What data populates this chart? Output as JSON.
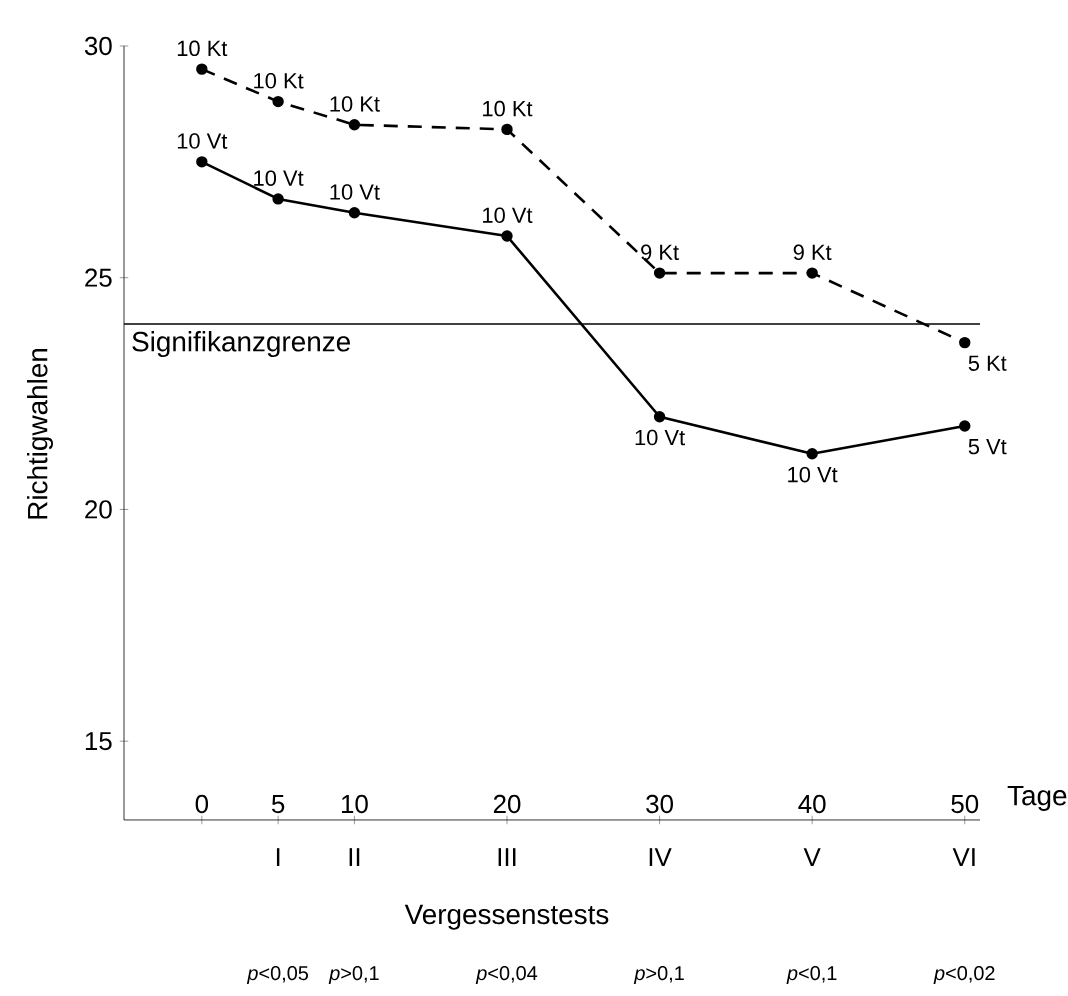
{
  "chart_data": {
    "type": "line",
    "xlabel": "Tage",
    "ylabel": "Richtigwahlen",
    "x": [
      0,
      5,
      10,
      20,
      30,
      40,
      50
    ],
    "series": [
      {
        "values": [
          29.5,
          28.8,
          28.3,
          28.2,
          25.1,
          25.1,
          23.6
        ],
        "color": "#000000",
        "line_style": "dashed"
      },
      {
        "values": [
          27.5,
          26.7,
          26.4,
          25.9,
          22.0,
          21.2,
          21.8
        ],
        "color": "#000000",
        "line_style": "solid"
      }
    ],
    "xlim": [
      -5.1,
      51
    ],
    "ylim": [
      13.3,
      30
    ],
    "yticks": [
      15,
      20,
      25,
      30
    ],
    "xticks": [
      0,
      5,
      10,
      20,
      30,
      40,
      50
    ],
    "ref_lines": [
      {
        "axis": "y",
        "value": 24,
        "label": "Signifikanzgrenze"
      }
    ],
    "marker": "circle",
    "annotations": [
      {
        "text": "10 Kt",
        "x": 0,
        "y": 29.5
      },
      {
        "text": "10 Kt",
        "x": 5,
        "y": 28.8
      },
      {
        "text": "10 Kt",
        "x": 10,
        "y": 28.3
      },
      {
        "text": "10 Kt",
        "x": 20,
        "y": 28.2
      },
      {
        "text": "9 Kt",
        "x": 30,
        "y": 25.1
      },
      {
        "text": "9 Kt",
        "x": 40,
        "y": 25.1
      },
      {
        "text": "5 Kt",
        "x": 50,
        "y": 23.6
      },
      {
        "text": "10 Vt",
        "x": 0,
        "y": 27.5
      },
      {
        "text": "10 Vt",
        "x": 5,
        "y": 26.7
      },
      {
        "text": "10 Vt",
        "x": 10,
        "y": 26.4
      },
      {
        "text": "10 Vt",
        "x": 20,
        "y": 25.9
      },
      {
        "text": "10 Vt",
        "x": 30,
        "y": 22.0
      },
      {
        "text": "10 Vt",
        "x": 40,
        "y": 21.2
      },
      {
        "text": "5 Vt",
        "x": 50,
        "y": 21.8
      },
      "I",
      "II",
      "III",
      "IV",
      "V",
      "VI",
      "Vergessenstests",
      "*p*<0,05",
      "*p*>0,1",
      "*p*<0,04",
      "*p*>0,1",
      "*p*<0,1",
      "*p*<0,02"
    ]
  }
}
